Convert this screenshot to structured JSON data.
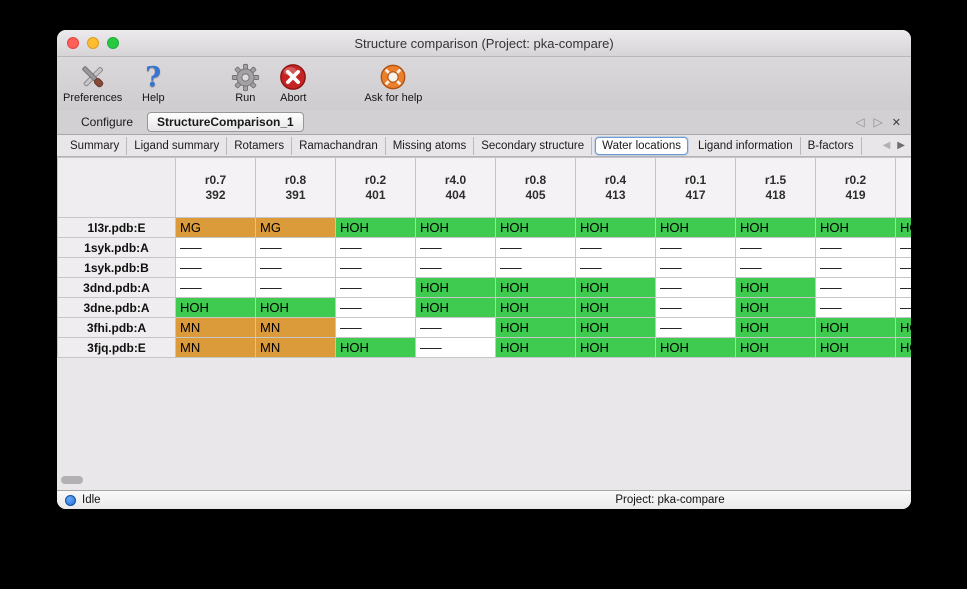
{
  "window": {
    "title": "Structure comparison (Project: pka-compare)"
  },
  "toolbar": {
    "items": [
      {
        "label": "Preferences",
        "icon": "preferences-tools-icon"
      },
      {
        "label": "Help",
        "icon": "help-question-icon"
      },
      {
        "label": "Run",
        "icon": "run-gear-icon"
      },
      {
        "label": "Abort",
        "icon": "abort-icon"
      },
      {
        "label": "Ask for help",
        "icon": "lifebuoy-icon"
      }
    ]
  },
  "document_tabs": {
    "tabs": [
      {
        "label": "Configure",
        "active": false
      },
      {
        "label": "StructureComparison_1",
        "active": true
      }
    ],
    "controls": {
      "prev_glyph": "◁",
      "next_glyph": "▷",
      "close_glyph": "✕"
    }
  },
  "subtab_bar": {
    "tabs": [
      "Summary",
      "Ligand summary",
      "Rotamers",
      "Ramachandran",
      "Missing atoms",
      "Secondary structure",
      "Water locations",
      "Ligand information",
      "B-factors"
    ],
    "selected": "Water locations",
    "controls": {
      "prev_glyph": "◀",
      "next_glyph": "▶"
    }
  },
  "table": {
    "columns": [
      {
        "line1": "r0.7",
        "line2": "392"
      },
      {
        "line1": "r0.8",
        "line2": "391"
      },
      {
        "line1": "r0.2",
        "line2": "401"
      },
      {
        "line1": "r4.0",
        "line2": "404"
      },
      {
        "line1": "r0.8",
        "line2": "405"
      },
      {
        "line1": "r0.4",
        "line2": "413"
      },
      {
        "line1": "r0.1",
        "line2": "417"
      },
      {
        "line1": "r1.5",
        "line2": "418"
      },
      {
        "line1": "r0.2",
        "line2": "419"
      },
      {
        "line1": "",
        "line2": ""
      }
    ],
    "rows": [
      {
        "label": "1l3r.pdb:E",
        "cells": [
          {
            "text": "MG",
            "type": "metal"
          },
          {
            "text": "MG",
            "type": "metal"
          },
          {
            "text": "HOH",
            "type": "water"
          },
          {
            "text": "HOH",
            "type": "water"
          },
          {
            "text": "HOH",
            "type": "water"
          },
          {
            "text": "HOH",
            "type": "water"
          },
          {
            "text": "HOH",
            "type": "water"
          },
          {
            "text": "HOH",
            "type": "water"
          },
          {
            "text": "HOH",
            "type": "water"
          },
          {
            "text": "HOH",
            "type": "water"
          }
        ]
      },
      {
        "label": "1syk.pdb:A",
        "cells": [
          {
            "text": "–––",
            "type": "empty"
          },
          {
            "text": "–––",
            "type": "empty"
          },
          {
            "text": "–––",
            "type": "empty"
          },
          {
            "text": "–––",
            "type": "empty"
          },
          {
            "text": "–––",
            "type": "empty"
          },
          {
            "text": "–––",
            "type": "empty"
          },
          {
            "text": "–––",
            "type": "empty"
          },
          {
            "text": "–––",
            "type": "empty"
          },
          {
            "text": "–––",
            "type": "empty"
          },
          {
            "text": "–––",
            "type": "empty"
          }
        ]
      },
      {
        "label": "1syk.pdb:B",
        "cells": [
          {
            "text": "–––",
            "type": "empty"
          },
          {
            "text": "–––",
            "type": "empty"
          },
          {
            "text": "–––",
            "type": "empty"
          },
          {
            "text": "–––",
            "type": "empty"
          },
          {
            "text": "–––",
            "type": "empty"
          },
          {
            "text": "–––",
            "type": "empty"
          },
          {
            "text": "–––",
            "type": "empty"
          },
          {
            "text": "–––",
            "type": "empty"
          },
          {
            "text": "–––",
            "type": "empty"
          },
          {
            "text": "–––",
            "type": "empty"
          }
        ]
      },
      {
        "label": "3dnd.pdb:A",
        "cells": [
          {
            "text": "–––",
            "type": "empty"
          },
          {
            "text": "–––",
            "type": "empty"
          },
          {
            "text": "–––",
            "type": "empty"
          },
          {
            "text": "HOH",
            "type": "water"
          },
          {
            "text": "HOH",
            "type": "water"
          },
          {
            "text": "HOH",
            "type": "water"
          },
          {
            "text": "–––",
            "type": "empty"
          },
          {
            "text": "HOH",
            "type": "water"
          },
          {
            "text": "–––",
            "type": "empty"
          },
          {
            "text": "–––",
            "type": "empty"
          }
        ]
      },
      {
        "label": "3dne.pdb:A",
        "cells": [
          {
            "text": "HOH",
            "type": "water"
          },
          {
            "text": "HOH",
            "type": "water"
          },
          {
            "text": "–––",
            "type": "empty"
          },
          {
            "text": "HOH",
            "type": "water"
          },
          {
            "text": "HOH",
            "type": "water"
          },
          {
            "text": "HOH",
            "type": "water"
          },
          {
            "text": "–––",
            "type": "empty"
          },
          {
            "text": "HOH",
            "type": "water"
          },
          {
            "text": "–––",
            "type": "empty"
          },
          {
            "text": "–––",
            "type": "empty"
          }
        ]
      },
      {
        "label": "3fhi.pdb:A",
        "cells": [
          {
            "text": "MN",
            "type": "metal"
          },
          {
            "text": "MN",
            "type": "metal"
          },
          {
            "text": "–––",
            "type": "empty"
          },
          {
            "text": "–––",
            "type": "empty"
          },
          {
            "text": "HOH",
            "type": "water"
          },
          {
            "text": "HOH",
            "type": "water"
          },
          {
            "text": "–––",
            "type": "empty"
          },
          {
            "text": "HOH",
            "type": "water"
          },
          {
            "text": "HOH",
            "type": "water"
          },
          {
            "text": "HOH",
            "type": "water"
          }
        ]
      },
      {
        "label": "3fjq.pdb:E",
        "cells": [
          {
            "text": "MN",
            "type": "metal"
          },
          {
            "text": "MN",
            "type": "metal"
          },
          {
            "text": "HOH",
            "type": "water"
          },
          {
            "text": "–––",
            "type": "empty"
          },
          {
            "text": "HOH",
            "type": "water"
          },
          {
            "text": "HOH",
            "type": "water"
          },
          {
            "text": "HOH",
            "type": "water"
          },
          {
            "text": "HOH",
            "type": "water"
          },
          {
            "text": "HOH",
            "type": "water"
          },
          {
            "text": "HOH",
            "type": "water"
          }
        ]
      }
    ]
  },
  "status_bar": {
    "status": "Idle",
    "project": "Project: pka-compare"
  },
  "colors": {
    "water_cell": "#3ecb50",
    "metal_cell": "#db9b3a",
    "subtab_selected_border": "#6b9bd2",
    "status_dot": "#1b6fe0"
  }
}
